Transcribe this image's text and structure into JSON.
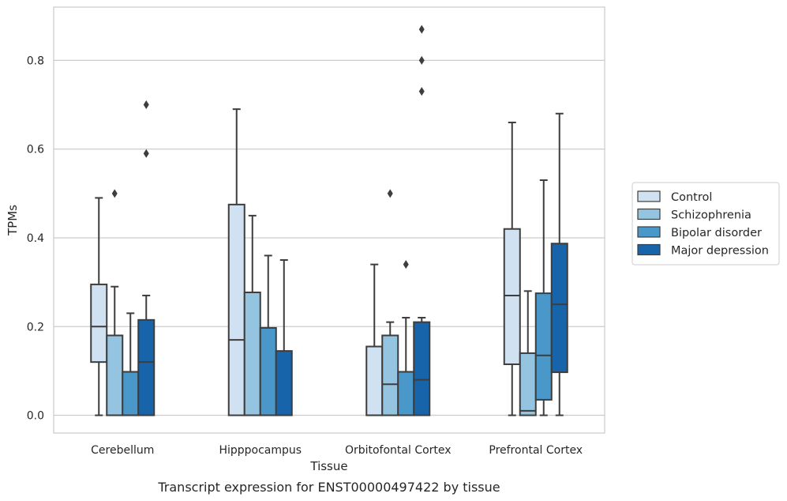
{
  "chart_data": {
    "type": "box",
    "title": "",
    "caption": "Transcript expression for ENST00000497422 by tissue",
    "xlabel": "Tissue",
    "ylabel": "TPMs",
    "ylim": [
      -0.04,
      0.92
    ],
    "yticks": [
      0.0,
      0.2,
      0.4,
      0.6,
      0.8
    ],
    "ytick_labels": [
      "0.0",
      "0.2",
      "0.4",
      "0.6",
      "0.8"
    ],
    "grid": "horizontal",
    "legend_position": "right",
    "categories": [
      "Cerebellum",
      "Hipppocampus",
      "Orbitofontal Cortex",
      "Prefrontal Cortex"
    ],
    "series": [
      {
        "name": "Control",
        "color": "#d0e1f2",
        "boxes": [
          {
            "min": 0.0,
            "q1": 0.12,
            "median": 0.2,
            "q3": 0.295,
            "max": 0.49,
            "outliers": []
          },
          {
            "min": 0.0,
            "q1": 0.0,
            "median": 0.17,
            "q3": 0.475,
            "max": 0.69,
            "outliers": []
          },
          {
            "min": 0.0,
            "q1": 0.0,
            "median": 0.0,
            "q3": 0.155,
            "max": 0.34,
            "outliers": []
          },
          {
            "min": 0.0,
            "q1": 0.115,
            "median": 0.27,
            "q3": 0.42,
            "max": 0.66,
            "outliers": []
          }
        ]
      },
      {
        "name": "Schizophrenia",
        "color": "#94c4df",
        "boxes": [
          {
            "min": 0.0,
            "q1": 0.0,
            "median": 0.0,
            "q3": 0.18,
            "max": 0.29,
            "outliers": [
              0.5
            ]
          },
          {
            "min": 0.0,
            "q1": 0.0,
            "median": 0.0,
            "q3": 0.277,
            "max": 0.45,
            "outliers": []
          },
          {
            "min": 0.0,
            "q1": 0.0,
            "median": 0.07,
            "q3": 0.18,
            "max": 0.21,
            "outliers": [
              0.5
            ]
          },
          {
            "min": 0.0,
            "q1": 0.0,
            "median": 0.01,
            "q3": 0.14,
            "max": 0.28,
            "outliers": []
          }
        ]
      },
      {
        "name": "Bipolar disorder",
        "color": "#4a98c9",
        "boxes": [
          {
            "min": 0.0,
            "q1": 0.0,
            "median": 0.0,
            "q3": 0.098,
            "max": 0.23,
            "outliers": []
          },
          {
            "min": 0.0,
            "q1": 0.0,
            "median": 0.0,
            "q3": 0.197,
            "max": 0.36,
            "outliers": []
          },
          {
            "min": 0.0,
            "q1": 0.0,
            "median": 0.0,
            "q3": 0.098,
            "max": 0.22,
            "outliers": [
              0.34
            ]
          },
          {
            "min": 0.0,
            "q1": 0.035,
            "median": 0.135,
            "q3": 0.275,
            "max": 0.53,
            "outliers": []
          }
        ]
      },
      {
        "name": "Major depression",
        "color": "#1764ab",
        "boxes": [
          {
            "min": 0.0,
            "q1": 0.0,
            "median": 0.12,
            "q3": 0.215,
            "max": 0.27,
            "outliers": [
              0.59,
              0.7
            ]
          },
          {
            "min": 0.0,
            "q1": 0.0,
            "median": 0.0,
            "q3": 0.145,
            "max": 0.35,
            "outliers": []
          },
          {
            "min": 0.0,
            "q1": 0.0,
            "median": 0.08,
            "q3": 0.21,
            "max": 0.22,
            "outliers": [
              0.73,
              0.8,
              0.87
            ]
          },
          {
            "min": 0.0,
            "q1": 0.097,
            "median": 0.25,
            "q3": 0.387,
            "max": 0.68,
            "outliers": []
          }
        ]
      }
    ]
  }
}
